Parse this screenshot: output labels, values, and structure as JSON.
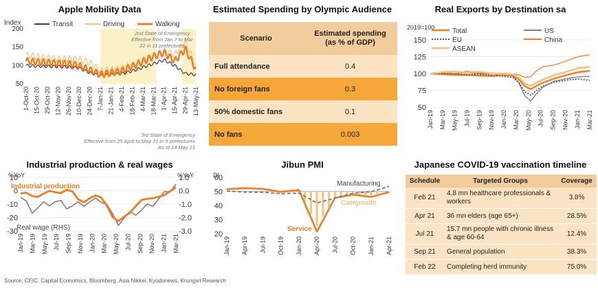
{
  "colors": {
    "orange": "#f47b20",
    "light_orange": "#f8c07a",
    "gray": "#7f7f7f",
    "dark": "#404040",
    "tan_header": "#f2cc9c",
    "row_light": "#fbe3c4",
    "row_dark": "#f5a73a",
    "shade": "#fdf1c8"
  },
  "mobility": {
    "title": "Apple Mobility Data",
    "index_label": "Index",
    "note1": "2nd State of Emergency Effective from Jan 7 to Mar 22 in 11 prefectures",
    "note2_line1": "3rd State of Emergency",
    "note2_line2": "Effective from 25 April to May 31 in 9 prefectures",
    "note2_line3": "As of 14 May 21"
  },
  "spending": {
    "title": "Estimated Spending by Olympic Audience",
    "col1": "Scenario",
    "col2_line1": "Estimated spending",
    "col2_line2": "(as % of GDP)",
    "rows": [
      {
        "scenario": "Full attendance",
        "value": "0.4"
      },
      {
        "scenario": "No foreign fans",
        "value": "0.3"
      },
      {
        "scenario": "50% domestic fans",
        "value": "0.1"
      },
      {
        "scenario": "No fans",
        "value": "0.003"
      }
    ]
  },
  "exports": {
    "title": "Real Exports by Destination sa",
    "unit": "2019=100"
  },
  "industrial": {
    "title": "Industrial production & real wages",
    "left_unit": "%YoY",
    "right_unit": "%YoY"
  },
  "pmi": {
    "title": "Jibun PMI",
    "unit": "DI"
  },
  "vaccine": {
    "title": "Japanese COVID-19 vaccination timeline",
    "headers": [
      "Schedule",
      "Targeted Groups",
      "Coverage"
    ],
    "rows": [
      {
        "schedule": "Feb 21",
        "group": "4.8 mn healthcare professionals & workers",
        "coverage": "3.8%"
      },
      {
        "schedule": "Apr 21",
        "group": "36 mn elders (age 65+)",
        "coverage": "28.5%"
      },
      {
        "schedule": "Jul 21",
        "group": "15.7 mn people with chronic illness & age 60-64",
        "coverage": "12.4%"
      },
      {
        "schedule": "Sep 21",
        "group": "General population",
        "coverage": "38.3%"
      },
      {
        "schedule": "Feb 22",
        "group": "Completing herd immunity",
        "coverage": "75.0%"
      }
    ]
  },
  "source": "Source: CEIC, Capital Economics, Bloomberg, Asia Nikkei, Kyodonews, Krungsri Research",
  "chart_data": [
    {
      "type": "line",
      "title": "Apple Mobility Data",
      "ylabel": "Index",
      "ylim": [
        50,
        200
      ],
      "yticks": [
        50,
        100,
        150,
        200
      ],
      "xticks": [
        "1-Oct-20",
        "15-Oct-20",
        "29-Oct-20",
        "12-Nov-20",
        "26-Nov-20",
        "10-Dec-20",
        "24-Dec-20",
        "7-Jan-21",
        "21-Jan-21",
        "4-Feb-21",
        "18-Feb-21",
        "4-Mar-21",
        "18-Mar-21",
        "1-Apr-21",
        "15-Apr-21",
        "29-Apr-21",
        "13-May-21"
      ],
      "shaded_ranges": [
        [
          "7-Jan-21",
          "22-Mar-21"
        ],
        [
          "25-Apr-21",
          "13-May-21"
        ]
      ],
      "legend": "top",
      "series": [
        {
          "name": "Transit",
          "values": [
            100,
            98,
            98,
            97,
            96,
            93,
            80,
            72,
            75,
            78,
            85,
            95,
            105,
            115,
            100,
            78,
            75
          ]
        },
        {
          "name": "Driving",
          "values": [
            128,
            125,
            120,
            118,
            118,
            117,
            108,
            85,
            88,
            92,
            100,
            115,
            125,
            140,
            130,
            165,
            100
          ]
        },
        {
          "name": "Walking",
          "values": [
            112,
            110,
            108,
            106,
            105,
            100,
            88,
            75,
            80,
            85,
            98,
            110,
            125,
            135,
            112,
            145,
            90
          ]
        }
      ]
    },
    {
      "type": "line",
      "title": "Real Exports by Destination sa",
      "ylabel": "2019=100",
      "ylim": [
        50,
        150
      ],
      "yticks": [
        50,
        75,
        100,
        125,
        150
      ],
      "x": [
        "Jan-19",
        "Mar-19",
        "May-19",
        "Jul-19",
        "Sep-19",
        "Nov-19",
        "Jan-20",
        "Mar-20",
        "May-20",
        "Jul-20",
        "Sep-20",
        "Nov-20",
        "Jan-21",
        "Mar-21"
      ],
      "legend": "top",
      "series": [
        {
          "name": "Total",
          "values": [
            100,
            99,
            98,
            98,
            97,
            96,
            98,
            96,
            75,
            85,
            92,
            97,
            102,
            104
          ]
        },
        {
          "name": "US",
          "values": [
            100,
            101,
            100,
            101,
            100,
            99,
            100,
            95,
            55,
            78,
            88,
            92,
            95,
            96
          ]
        },
        {
          "name": "EU",
          "values": [
            100,
            100,
            99,
            98,
            99,
            97,
            96,
            93,
            65,
            80,
            87,
            90,
            92,
            90
          ]
        },
        {
          "name": "China",
          "values": [
            100,
            102,
            98,
            104,
            101,
            100,
            96,
            100,
            92,
            110,
            112,
            118,
            125,
            128
          ]
        },
        {
          "name": "ASEAN",
          "values": [
            100,
            102,
            103,
            101,
            103,
            100,
            100,
            98,
            80,
            90,
            97,
            102,
            108,
            110
          ]
        }
      ]
    },
    {
      "type": "line",
      "title": "Industrial production & real wages",
      "ylabel": "%YoY",
      "ylim": [
        -30,
        10
      ],
      "yticks": [
        10,
        0,
        -10,
        -20,
        -30
      ],
      "y2lim": [
        -3.0,
        1.0
      ],
      "y2ticks": [
        1.0,
        0.0,
        -1.0,
        -2.0,
        -3.0
      ],
      "x": [
        "Jan-19",
        "Mar-19",
        "May-19",
        "Jul-19",
        "Sep-19",
        "Nov-19",
        "Jan-20",
        "Mar-20",
        "May-20",
        "Jul-20",
        "Sep-20",
        "Nov-20",
        "Jan-21",
        "Mar-21"
      ],
      "series": [
        {
          "name": "Industrial production",
          "axis": "left",
          "values": [
            -2,
            -4,
            -2,
            -1,
            1,
            -8,
            -5,
            -5,
            -26,
            -16,
            -9,
            -4,
            -5,
            4
          ]
        },
        {
          "name": "Real wage (RHS)",
          "axis": "right",
          "values": [
            -0.5,
            -1.5,
            -1.0,
            -0.8,
            -1.2,
            -1.0,
            -0.8,
            -0.6,
            -2.5,
            -1.8,
            -1.5,
            -1.0,
            -0.3,
            0.5
          ]
        }
      ]
    },
    {
      "type": "line",
      "title": "Jibun PMI",
      "ylabel": "DI",
      "ylim": [
        20,
        60
      ],
      "yticks": [
        20,
        30,
        40,
        50,
        60
      ],
      "x": [
        "Jan-19",
        "Apr-19",
        "Jul-19",
        "Oct-19",
        "Jan-20",
        "Apr-20",
        "Jul-20",
        "Oct-20",
        "Jan-21",
        "Apr-21"
      ],
      "series": [
        {
          "name": "Manufacturing",
          "values": [
            50.3,
            49.5,
            49.4,
            48.4,
            48.8,
            41.9,
            45.2,
            48.7,
            49.8,
            53.6
          ]
        },
        {
          "name": "Service",
          "values": [
            51.6,
            52.3,
            51.8,
            49.7,
            51.0,
            21.5,
            45.4,
            47.7,
            46.1,
            49.5
          ]
        },
        {
          "name": "Composite",
          "values": [
            50.9,
            51.1,
            50.6,
            49.1,
            50.1,
            25.8,
            44.9,
            48.0,
            47.1,
            51.0
          ]
        }
      ]
    }
  ]
}
